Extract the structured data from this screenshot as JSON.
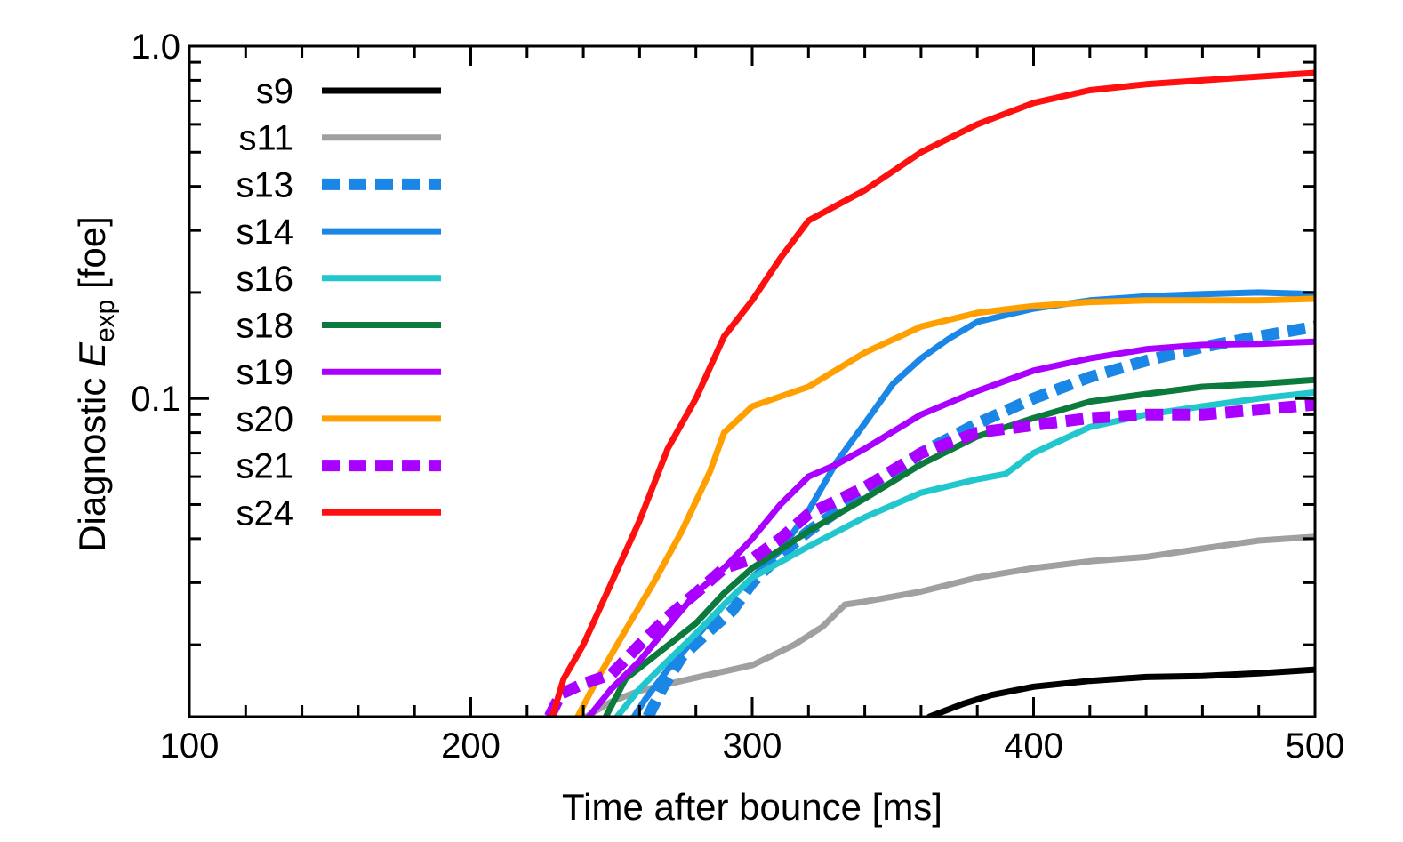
{
  "chart_data": {
    "type": "line",
    "xlabel": "Time after bounce [ms]",
    "ylabel": {
      "prefix": "Diagnostic ",
      "symbol": "E",
      "subscript": "exp",
      "unit": " [foe]"
    },
    "xlim": [
      100,
      500
    ],
    "ylim": [
      0.0125,
      1.0
    ],
    "yscale": "log",
    "x_ticks": [
      100,
      200,
      300,
      400,
      500
    ],
    "x_tick_labels": [
      "100",
      "200",
      "300",
      "400",
      "500"
    ],
    "y_ticks": [
      0.1,
      1.0
    ],
    "y_tick_labels": [
      "0.1",
      "1.0"
    ],
    "legend_position": "top-left",
    "series": [
      {
        "name": "s9",
        "color": "#000000",
        "dashed": false,
        "points": [
          [
            363,
            0.0125
          ],
          [
            375,
            0.0136
          ],
          [
            385,
            0.0144
          ],
          [
            400,
            0.0152
          ],
          [
            420,
            0.0158
          ],
          [
            440,
            0.0162
          ],
          [
            460,
            0.0163
          ],
          [
            480,
            0.0166
          ],
          [
            500,
            0.017
          ]
        ]
      },
      {
        "name": "s11",
        "color": "#a0a0a0",
        "dashed": false,
        "points": [
          [
            241,
            0.0125
          ],
          [
            250,
            0.0138
          ],
          [
            260,
            0.0148
          ],
          [
            275,
            0.0158
          ],
          [
            290,
            0.0168
          ],
          [
            300,
            0.0175
          ],
          [
            315,
            0.02
          ],
          [
            325,
            0.0225
          ],
          [
            333,
            0.026
          ],
          [
            340,
            0.0265
          ],
          [
            360,
            0.0283
          ],
          [
            380,
            0.031
          ],
          [
            400,
            0.033
          ],
          [
            420,
            0.0345
          ],
          [
            440,
            0.0355
          ],
          [
            460,
            0.0375
          ],
          [
            480,
            0.0395
          ],
          [
            500,
            0.0405
          ]
        ]
      },
      {
        "name": "s13",
        "color": "#1a86e6",
        "dashed": true,
        "points": [
          [
            263,
            0.0125
          ],
          [
            268,
            0.015
          ],
          [
            275,
            0.0185
          ],
          [
            285,
            0.022
          ],
          [
            293,
            0.025
          ],
          [
            300,
            0.03
          ],
          [
            310,
            0.036
          ],
          [
            320,
            0.042
          ],
          [
            340,
            0.054
          ],
          [
            360,
            0.07
          ],
          [
            380,
            0.085
          ],
          [
            400,
            0.1
          ],
          [
            420,
            0.115
          ],
          [
            440,
            0.128
          ],
          [
            460,
            0.14
          ],
          [
            480,
            0.15
          ],
          [
            500,
            0.16
          ]
        ]
      },
      {
        "name": "s14",
        "color": "#1a86e6",
        "dashed": false,
        "points": [
          [
            258,
            0.0125
          ],
          [
            262,
            0.014
          ],
          [
            270,
            0.017
          ],
          [
            280,
            0.021
          ],
          [
            290,
            0.026
          ],
          [
            300,
            0.031
          ],
          [
            310,
            0.037
          ],
          [
            320,
            0.048
          ],
          [
            330,
            0.066
          ],
          [
            340,
            0.085
          ],
          [
            350,
            0.11
          ],
          [
            360,
            0.13
          ],
          [
            370,
            0.148
          ],
          [
            380,
            0.165
          ],
          [
            400,
            0.18
          ],
          [
            420,
            0.19
          ],
          [
            440,
            0.195
          ],
          [
            460,
            0.198
          ],
          [
            480,
            0.2
          ],
          [
            500,
            0.198
          ]
        ]
      },
      {
        "name": "s16",
        "color": "#21c7cc",
        "dashed": false,
        "points": [
          [
            252,
            0.0125
          ],
          [
            260,
            0.015
          ],
          [
            270,
            0.018
          ],
          [
            280,
            0.0215
          ],
          [
            290,
            0.026
          ],
          [
            300,
            0.031
          ],
          [
            320,
            0.038
          ],
          [
            340,
            0.046
          ],
          [
            360,
            0.054
          ],
          [
            380,
            0.059
          ],
          [
            390,
            0.061
          ],
          [
            400,
            0.07
          ],
          [
            420,
            0.083
          ],
          [
            440,
            0.09
          ],
          [
            460,
            0.095
          ],
          [
            480,
            0.1
          ],
          [
            500,
            0.104
          ]
        ]
      },
      {
        "name": "s18",
        "color": "#0c7a3c",
        "dashed": false,
        "points": [
          [
            248,
            0.0125
          ],
          [
            255,
            0.016
          ],
          [
            265,
            0.0185
          ],
          [
            280,
            0.023
          ],
          [
            290,
            0.028
          ],
          [
            300,
            0.033
          ],
          [
            320,
            0.042
          ],
          [
            340,
            0.052
          ],
          [
            360,
            0.065
          ],
          [
            380,
            0.078
          ],
          [
            400,
            0.088
          ],
          [
            420,
            0.098
          ],
          [
            440,
            0.103
          ],
          [
            460,
            0.108
          ],
          [
            480,
            0.11
          ],
          [
            500,
            0.113
          ]
        ]
      },
      {
        "name": "s19",
        "color": "#aa00ff",
        "dashed": false,
        "points": [
          [
            242,
            0.0125
          ],
          [
            250,
            0.015
          ],
          [
            260,
            0.018
          ],
          [
            270,
            0.0225
          ],
          [
            280,
            0.028
          ],
          [
            290,
            0.033
          ],
          [
            300,
            0.04
          ],
          [
            310,
            0.05
          ],
          [
            320,
            0.06
          ],
          [
            330,
            0.065
          ],
          [
            340,
            0.072
          ],
          [
            360,
            0.09
          ],
          [
            380,
            0.105
          ],
          [
            400,
            0.12
          ],
          [
            420,
            0.13
          ],
          [
            440,
            0.138
          ],
          [
            460,
            0.142
          ],
          [
            480,
            0.143
          ],
          [
            500,
            0.145
          ]
        ]
      },
      {
        "name": "s20",
        "color": "#ffa000",
        "dashed": false,
        "points": [
          [
            238,
            0.0125
          ],
          [
            245,
            0.016
          ],
          [
            255,
            0.022
          ],
          [
            265,
            0.03
          ],
          [
            275,
            0.042
          ],
          [
            285,
            0.062
          ],
          [
            290,
            0.08
          ],
          [
            300,
            0.095
          ],
          [
            320,
            0.108
          ],
          [
            340,
            0.135
          ],
          [
            360,
            0.16
          ],
          [
            380,
            0.175
          ],
          [
            400,
            0.183
          ],
          [
            420,
            0.188
          ],
          [
            440,
            0.19
          ],
          [
            460,
            0.19
          ],
          [
            480,
            0.19
          ],
          [
            500,
            0.192
          ]
        ]
      },
      {
        "name": "s21",
        "color": "#aa00ff",
        "dashed": true,
        "points": [
          [
            228,
            0.0125
          ],
          [
            232,
            0.0145
          ],
          [
            240,
            0.0155
          ],
          [
            250,
            0.0165
          ],
          [
            260,
            0.02
          ],
          [
            270,
            0.024
          ],
          [
            280,
            0.028
          ],
          [
            290,
            0.033
          ],
          [
            300,
            0.035
          ],
          [
            310,
            0.04
          ],
          [
            320,
            0.047
          ],
          [
            340,
            0.056
          ],
          [
            360,
            0.07
          ],
          [
            380,
            0.08
          ],
          [
            400,
            0.084
          ],
          [
            420,
            0.088
          ],
          [
            440,
            0.09
          ],
          [
            460,
            0.09
          ],
          [
            480,
            0.093
          ],
          [
            500,
            0.096
          ]
        ]
      },
      {
        "name": "s24",
        "color": "#ff1010",
        "dashed": false,
        "points": [
          [
            229,
            0.0125
          ],
          [
            233,
            0.016
          ],
          [
            240,
            0.02
          ],
          [
            250,
            0.03
          ],
          [
            260,
            0.045
          ],
          [
            270,
            0.072
          ],
          [
            280,
            0.1
          ],
          [
            290,
            0.15
          ],
          [
            300,
            0.19
          ],
          [
            310,
            0.25
          ],
          [
            320,
            0.32
          ],
          [
            340,
            0.39
          ],
          [
            360,
            0.5
          ],
          [
            380,
            0.6
          ],
          [
            400,
            0.69
          ],
          [
            420,
            0.75
          ],
          [
            440,
            0.78
          ],
          [
            460,
            0.8
          ],
          [
            480,
            0.82
          ],
          [
            500,
            0.84
          ]
        ]
      }
    ]
  }
}
